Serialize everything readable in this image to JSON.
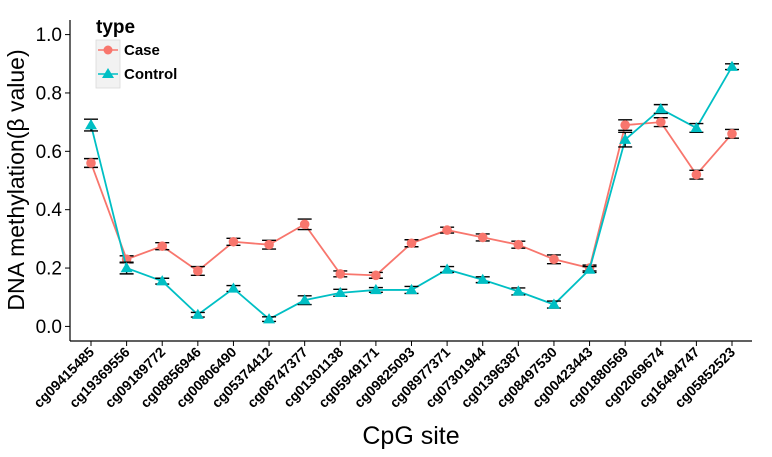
{
  "chart_data": {
    "type": "line",
    "title": "",
    "xlabel": "CpG site",
    "ylabel": "DNA methylation(β value)",
    "ylim": [
      -0.05,
      1.05
    ],
    "yticks": [
      0.0,
      0.2,
      0.4,
      0.6,
      0.8,
      1.0
    ],
    "ytick_labels": [
      "0.0",
      "0.2",
      "0.4",
      "0.6",
      "0.8",
      "1.0"
    ],
    "grid": false,
    "legend": {
      "title": "type",
      "placement": "top-left"
    },
    "categories": [
      "cg09415485",
      "cg19369556",
      "cg09189772",
      "cg08856946",
      "cg00806490",
      "cg05374412",
      "cg08747377",
      "cg01301138",
      "cg05949171",
      "cg09825093",
      "cg08977371",
      "cg07301944",
      "cg01396387",
      "cg08497530",
      "cg00423443",
      "cg01880569",
      "cg02069674",
      "cg16494747",
      "cg05852523"
    ],
    "series": [
      {
        "name": "Case",
        "color": "#F8766D",
        "marker": "circle",
        "values": [
          0.56,
          0.23,
          0.275,
          0.19,
          0.29,
          0.28,
          0.35,
          0.18,
          0.175,
          0.285,
          0.33,
          0.305,
          0.28,
          0.23,
          0.2,
          0.69,
          0.7,
          0.52,
          0.66
        ],
        "error": [
          0.015,
          0.012,
          0.012,
          0.015,
          0.012,
          0.015,
          0.018,
          0.01,
          0.01,
          0.012,
          0.01,
          0.012,
          0.012,
          0.015,
          0.01,
          0.018,
          0.015,
          0.015,
          0.015
        ]
      },
      {
        "name": "Control",
        "color": "#00BFC4",
        "marker": "triangle",
        "values": [
          0.69,
          0.2,
          0.155,
          0.04,
          0.13,
          0.025,
          0.09,
          0.115,
          0.125,
          0.125,
          0.195,
          0.16,
          0.12,
          0.075,
          0.195,
          0.64,
          0.745,
          0.68,
          0.89
        ],
        "error": [
          0.02,
          0.02,
          0.01,
          0.008,
          0.01,
          0.008,
          0.015,
          0.012,
          0.008,
          0.012,
          0.01,
          0.01,
          0.012,
          0.012,
          0.01,
          0.025,
          0.015,
          0.015,
          0.01
        ]
      }
    ]
  }
}
